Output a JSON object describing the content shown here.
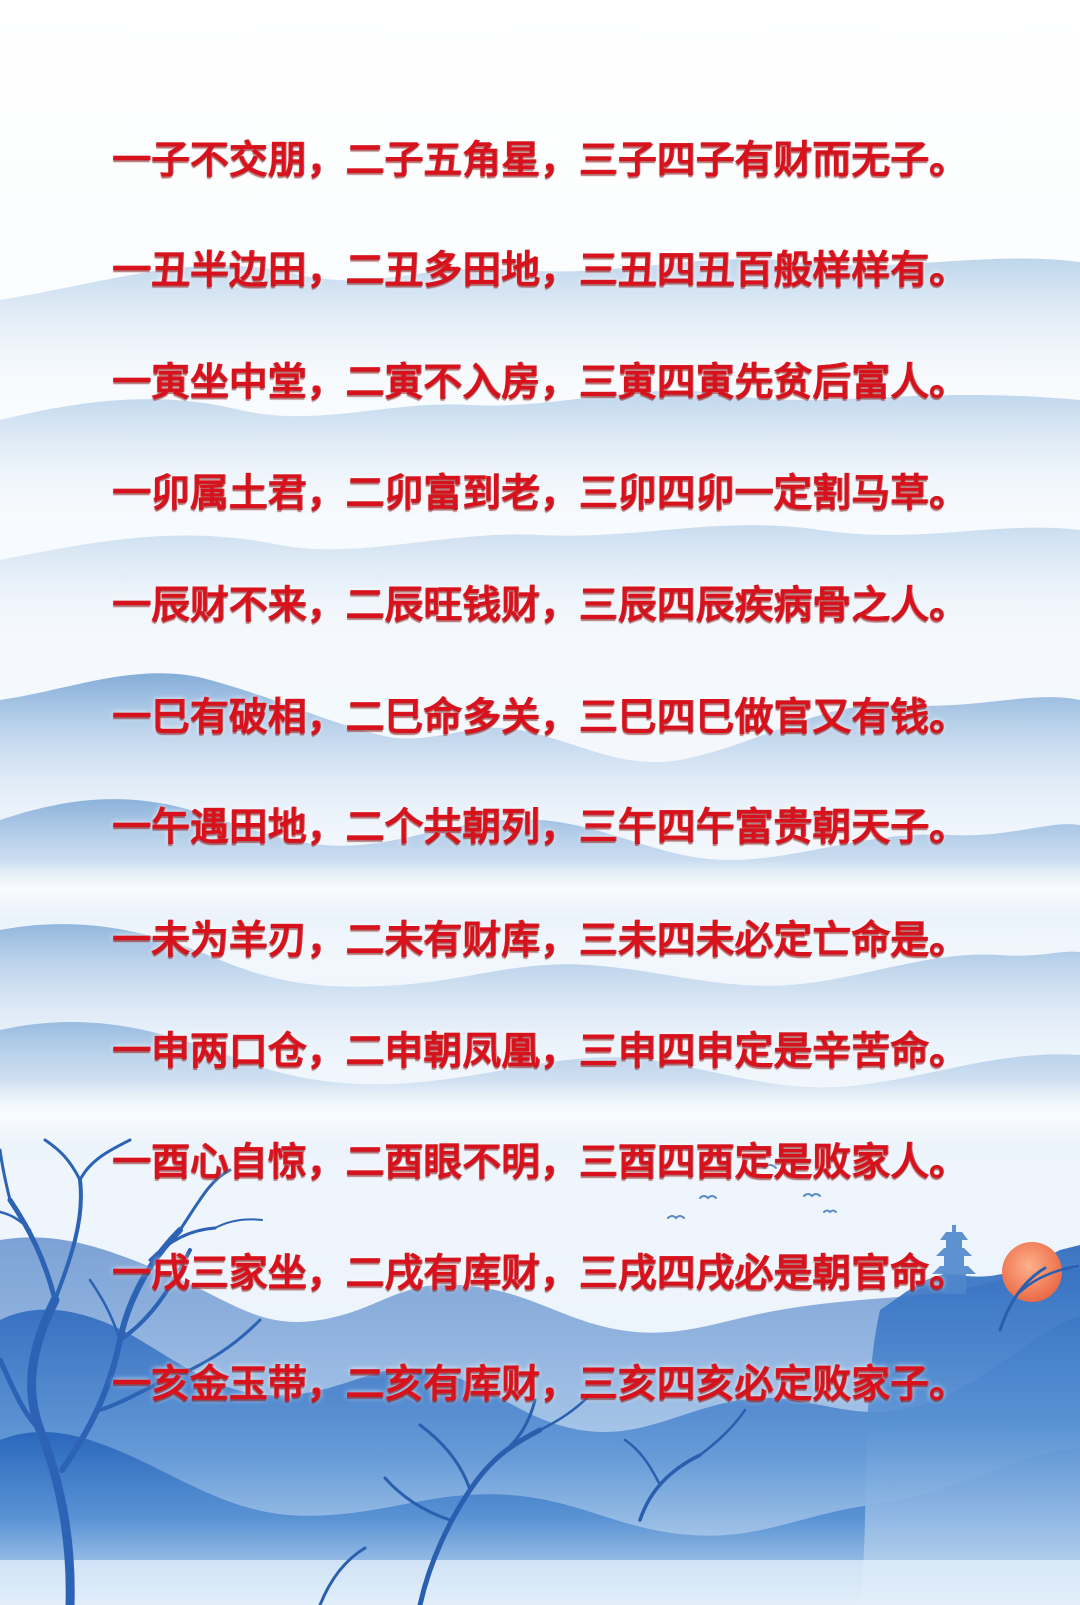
{
  "colors": {
    "verse_text": "#d8121c",
    "mountain_light": "#bcd5ec",
    "mountain_mid": "#7fa9d4",
    "mountain_deep": "#2f6fc2",
    "sun": "#f07c5a"
  },
  "decor": {
    "trees": "bare-tree-icon",
    "birds": "bird-icon",
    "pagoda": "pagoda-icon",
    "sun": "sun-icon"
  },
  "verses": [
    "一子不交朋，二子五角星，三子四子有财而无子。",
    "一丑半边田，二丑多田地，三丑四丑百般样样有。",
    "一寅坐中堂，二寅不入房，三寅四寅先贫后富人。",
    "一卯属土君，二卯富到老，三卯四卯一定割马草。",
    "一辰财不来，二辰旺钱财，三辰四辰疾病骨之人。",
    "一巳有破相，二巳命多关，三巳四巳做官又有钱。",
    "一午遇田地，二个共朝列，三午四午富贵朝天子。",
    "一未为羊刃，二未有财库，三未四未必定亡命是。",
    "一申两口仓，二申朝凤凰，三申四申定是辛苦命。",
    "一酉心自惊，二酉眼不明，三酉四酉定是败家人。",
    "一戌三家坐，二戌有库财，三戌四戌必是朝官命。",
    "一亥金玉带，二亥有库财，三亥四亥必定败家子。"
  ]
}
